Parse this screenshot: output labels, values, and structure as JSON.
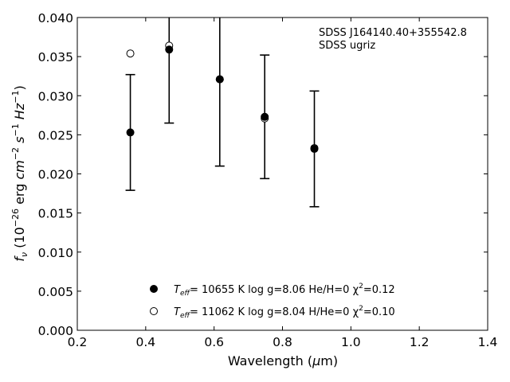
{
  "chart_data": {
    "type": "scatter",
    "xlabel": "Wavelength (μm)",
    "ylabel": "f_ν (10^-26 erg cm^-2 s^-1 Hz^-1)",
    "xlim": [
      0.2,
      1.4
    ],
    "ylim": [
      0.0,
      0.04
    ],
    "x_ticks": [
      "0.2",
      "0.4",
      "0.6",
      "0.8",
      "1.0",
      "1.2",
      "1.4"
    ],
    "y_ticks": [
      "0.000",
      "0.005",
      "0.010",
      "0.015",
      "0.020",
      "0.025",
      "0.030",
      "0.035",
      "0.040"
    ],
    "grid": false,
    "annotation": [
      "SDSS J164140.40+355542.8",
      "SDSS ugriz"
    ],
    "series": [
      {
        "name": "Teff= 10655 K  log g=8.06  He/H=0  χ2=0.12",
        "marker": "filled-circle",
        "x": [
          0.3551,
          0.4686,
          0.6166,
          0.748,
          0.8932
        ],
        "y": [
          0.0253,
          0.0359,
          0.0321,
          0.0273,
          0.0232
        ],
        "yerr": [
          0.0074,
          0.0094,
          0.0111,
          0.0079,
          0.0074
        ]
      },
      {
        "name": "Teff= 11062 K  log g=8.04  H/He=0  χ2=0.10",
        "marker": "open-circle",
        "x": [
          0.3551,
          0.4686,
          0.6166,
          0.748,
          0.8932
        ],
        "y": [
          0.0354,
          0.0364,
          0.0321,
          0.0271,
          0.0233
        ]
      }
    ],
    "legend": {
      "placement": "lower-center",
      "entries": [
        {
          "marker": "filled-circle",
          "teff_label": "T",
          "teff_sub": "eff",
          "text": "= 10655 K  log g=8.06  He/H=0  χ",
          "sup": "2",
          "tail": "=0.12"
        },
        {
          "marker": "open-circle",
          "teff_label": "T",
          "teff_sub": "eff",
          "text": "= 11062 K  log g=8.04  H/He=0  χ",
          "sup": "2",
          "tail": "=0.10"
        }
      ]
    },
    "colors": {
      "marker": "#000000",
      "open_fill": "#ffffff",
      "axis": "#000000"
    }
  }
}
